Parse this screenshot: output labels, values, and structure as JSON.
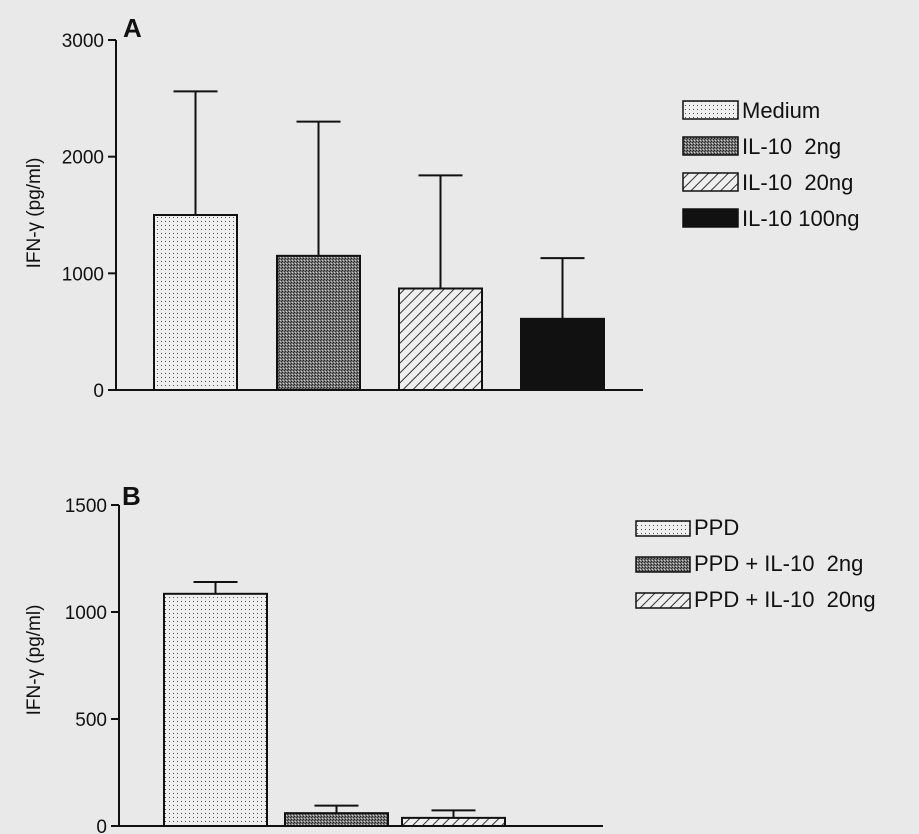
{
  "chart_data": [
    {
      "panel_label": "A",
      "type": "bar",
      "ylabel": "IFN-γ (pg/ml)",
      "ylim": [
        0,
        3000
      ],
      "yticks": [
        0,
        1000,
        2000,
        3000
      ],
      "series": [
        {
          "name": "Medium",
          "value": 1500,
          "error": 1060,
          "pattern": "dots"
        },
        {
          "name": "IL-10  2ng",
          "value": 1150,
          "error": 1150,
          "pattern": "dense"
        },
        {
          "name": "IL-10  20ng",
          "value": 870,
          "error": 970,
          "pattern": "hatch"
        },
        {
          "name": "IL-10 100ng",
          "value": 610,
          "error": 520,
          "pattern": "solid"
        }
      ],
      "legend_position": "right"
    },
    {
      "panel_label": "B",
      "type": "bar",
      "ylabel": "IFN-γ (pg/ml)",
      "ylim": [
        0,
        1500
      ],
      "yticks": [
        0,
        500,
        1000,
        1500
      ],
      "series": [
        {
          "name": "PPD",
          "value": 1085,
          "error": 55,
          "pattern": "dots"
        },
        {
          "name": "PPD + IL-10  2ng",
          "value": 60,
          "error": 35,
          "pattern": "dense"
        },
        {
          "name": "PPD + IL-10  20ng",
          "value": 38,
          "error": 35,
          "pattern": "hatch"
        }
      ],
      "legend_position": "right"
    }
  ]
}
